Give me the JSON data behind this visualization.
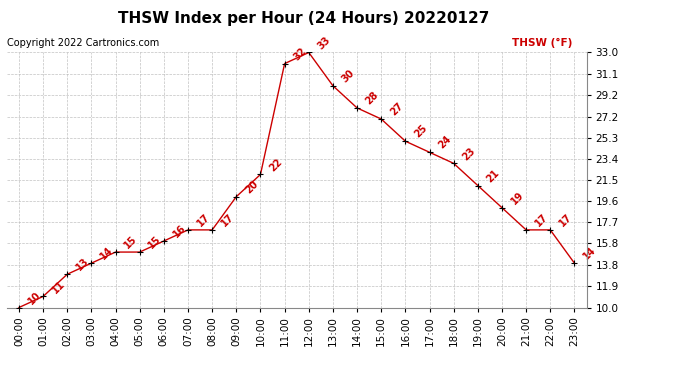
{
  "title": "THSW Index per Hour (24 Hours) 20220127",
  "copyright": "Copyright 2022 Cartronics.com",
  "legend_label": "THSW (°F)",
  "hours": [
    "00:00",
    "01:00",
    "02:00",
    "03:00",
    "04:00",
    "05:00",
    "06:00",
    "07:00",
    "08:00",
    "09:00",
    "10:00",
    "11:00",
    "12:00",
    "13:00",
    "14:00",
    "15:00",
    "16:00",
    "17:00",
    "18:00",
    "19:00",
    "20:00",
    "21:00",
    "22:00",
    "23:00"
  ],
  "values": [
    10,
    11,
    13,
    14,
    15,
    15,
    16,
    17,
    17,
    20,
    22,
    32,
    33,
    30,
    28,
    27,
    25,
    24,
    23,
    21,
    19,
    17,
    17,
    14
  ],
  "yticks": [
    10.0,
    11.9,
    13.8,
    15.8,
    17.7,
    19.6,
    21.5,
    23.4,
    25.3,
    27.2,
    29.2,
    31.1,
    33.0
  ],
  "line_color": "#cc0000",
  "marker_color": "#000000",
  "background_color": "#ffffff",
  "grid_color": "#bbbbbb",
  "title_fontsize": 11,
  "axis_fontsize": 7.5,
  "annotation_fontsize": 7,
  "copyright_fontsize": 7
}
